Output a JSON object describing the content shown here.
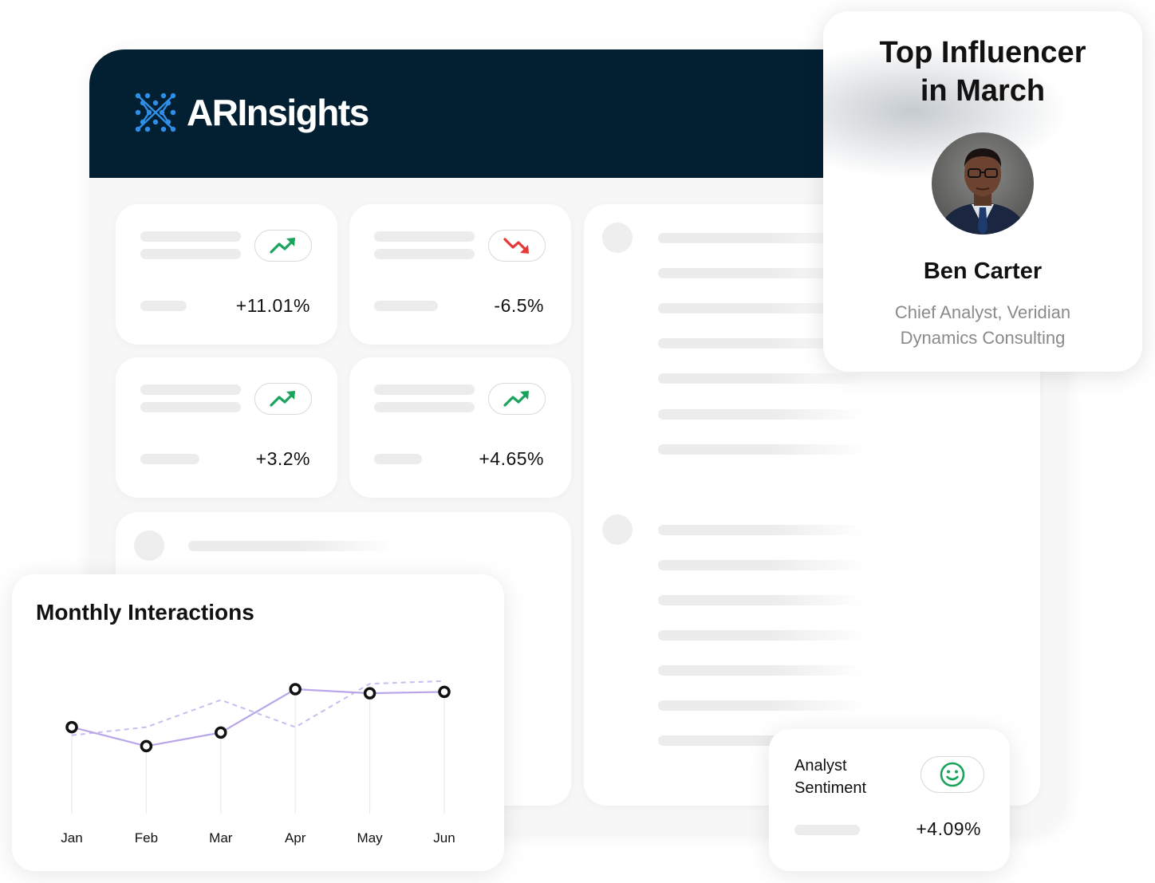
{
  "brand": {
    "name": "ARInsights",
    "logo_icon": "dotted-lattice-logo"
  },
  "stats": [
    {
      "value": "+11.01%",
      "trend": "up",
      "icon": "trend-up-icon"
    },
    {
      "value": "-6.5%",
      "trend": "down",
      "icon": "trend-down-icon"
    },
    {
      "value": "+3.2%",
      "trend": "up",
      "icon": "trend-up-icon"
    },
    {
      "value": "+4.65%",
      "trend": "up",
      "icon": "trend-up-icon"
    }
  ],
  "influencer": {
    "title_line1": "Top Influencer",
    "title_line2": "in March",
    "name": "Ben Carter",
    "role": "Chief Analyst, Veridian Dynamics Consulting"
  },
  "sentiment": {
    "label": "Analyst Sentiment",
    "value": "+4.09%",
    "icon": "smiley-face-icon"
  },
  "colors": {
    "header": "#032033",
    "up": "#1aa35a",
    "down": "#e53935",
    "series_primary": "#b7a6e8"
  },
  "chart_data": {
    "type": "line",
    "title": "Monthly Interactions",
    "categories": [
      "Jan",
      "Feb",
      "Mar",
      "Apr",
      "May",
      "Jun"
    ],
    "series": [
      {
        "style": "solid",
        "values": [
          52,
          38,
          48,
          80,
          77,
          78
        ]
      },
      {
        "style": "dashed",
        "values": [
          46,
          52,
          72,
          52,
          84,
          86
        ]
      }
    ],
    "ylim": [
      0,
      100
    ],
    "grid": false,
    "legend": "none"
  }
}
